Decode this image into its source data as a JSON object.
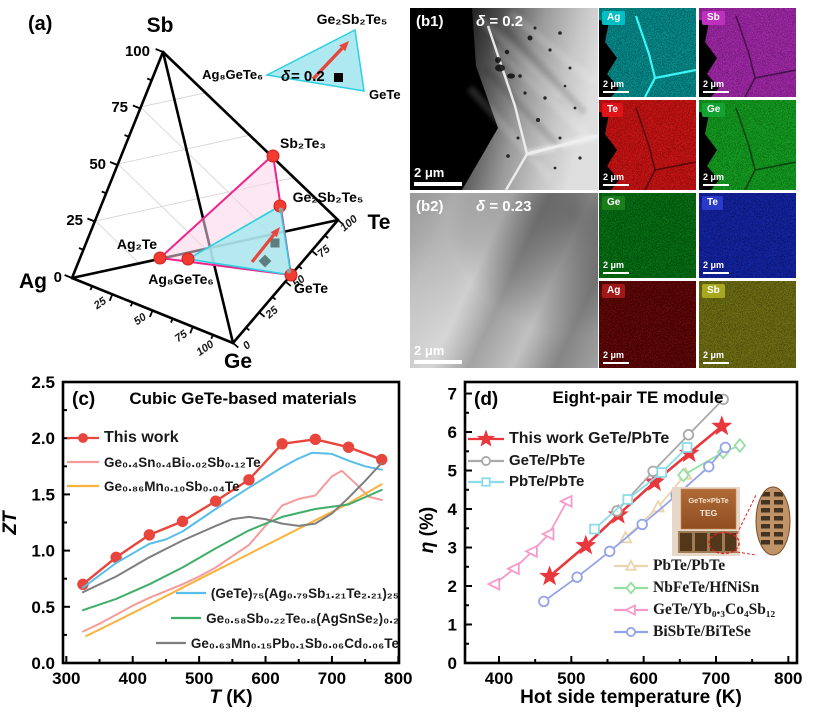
{
  "panel_a": {
    "label": "(a)",
    "vertices": [
      "Sb",
      "Ag",
      "Te",
      "Ge"
    ],
    "sb_ticks": [
      "100",
      "75",
      "50",
      "25",
      "0"
    ],
    "ag_ge_ticks": [
      "25",
      "50",
      "75",
      "100"
    ],
    "ge_te_ticks": [
      "0",
      "25",
      "50",
      "75",
      "100"
    ],
    "points": {
      "sb2te3": "Sb₂Te₃",
      "ge2sb2te5": "Ge₂Sb₂Te₅",
      "ag2te": "Ag₂Te",
      "ag8gete6": "Ag₈GeTe₆",
      "gete": "GeTe"
    },
    "inset": {
      "top": "Ge₂Sb₂Te₅",
      "left": "Ag₈GeTe₆",
      "right": "GeTe",
      "delta_symbol": "δ",
      "delta_eq": "= 0.2"
    },
    "colors": {
      "dot": "#f23b30",
      "magenta_triangle": "#f0248c",
      "cyan_triangle": "#2bd0e0",
      "arrow": "#e8463c"
    }
  },
  "panel_b1": {
    "label": "(b1)",
    "delta_symbol": "δ",
    "delta_value": "= 0.2",
    "scale_bar": "2 μm",
    "maps": [
      {
        "el": "Ag",
        "box": "#00bec6",
        "map": "#0e8b8b"
      },
      {
        "el": "Sb",
        "box": "#bf30bf",
        "map": "#a12ca8"
      },
      {
        "el": "Te",
        "box": "#e01418",
        "map": "#c81414"
      },
      {
        "el": "Ge",
        "box": "#12a332",
        "map": "#129c22"
      }
    ]
  },
  "panel_b2": {
    "label": "(b2)",
    "delta_symbol": "δ",
    "delta_value": "= 0.23",
    "scale_bar": "2 μm",
    "maps": [
      {
        "el": "Ge",
        "box": "#1b7e1b",
        "map": "#0e6e14"
      },
      {
        "el": "Te",
        "box": "#2a3bc8",
        "map": "#1428a0"
      },
      {
        "el": "Ag",
        "box": "#a01818",
        "map": "#5e0d0d"
      },
      {
        "el": "Sb",
        "box": "#a8a81e",
        "map": "#6e6e14"
      }
    ]
  },
  "panel_d_inset": {
    "module_line1": "GeTe×PbTe",
    "module_line2": "TEG"
  },
  "chart_data": [
    {
      "type": "line",
      "panel_label": "(c)",
      "title": "Cubic GeTe-based materials",
      "xlabel_italic": "T",
      "xlabel_rest": " (K)",
      "ylabel_italic": "ZT",
      "ylabel_rest": "",
      "xlim": [
        295,
        801
      ],
      "ylim": [
        0,
        2.5
      ],
      "xticks": [
        300,
        400,
        500,
        600,
        700,
        800
      ],
      "yticks": [
        "0.0",
        "0.5",
        "1.0",
        "1.5",
        "2.0",
        "2.5"
      ],
      "legend_position": "top-left and bottom-right",
      "grid": false,
      "series": [
        {
          "name": "This work",
          "color": "#e8463c",
          "marker": "circle-filled",
          "line_width": 2.4,
          "legend": "top",
          "x": [
            325,
            375,
            425,
            475,
            525,
            575,
            625,
            675,
            725,
            775
          ],
          "y": [
            0.7,
            0.94,
            1.14,
            1.26,
            1.44,
            1.63,
            1.95,
            1.99,
            1.92,
            1.81
          ]
        },
        {
          "name": "Ge₀.₄Sn₀.₄Bi₀.₀₂Sb₀.₁₂Te",
          "color": "#f49b9b",
          "marker": "none",
          "line_width": 2,
          "legend": "top",
          "x": [
            325,
            350,
            375,
            400,
            425,
            450,
            475,
            500,
            525,
            550,
            575,
            600,
            625,
            650,
            675,
            700,
            715,
            735,
            755,
            775
          ],
          "y": [
            0.28,
            0.35,
            0.43,
            0.51,
            0.58,
            0.64,
            0.7,
            0.77,
            0.85,
            0.95,
            1.05,
            1.22,
            1.4,
            1.46,
            1.49,
            1.66,
            1.71,
            1.6,
            1.48,
            1.45
          ]
        },
        {
          "name": "Ge₀.₈₆Mn₀.₁₀Sb₀.₀₄Te",
          "color": "#fbb13c",
          "marker": "none",
          "line_width": 2,
          "legend": "top",
          "x": [
            330,
            375,
            425,
            475,
            525,
            575,
            625,
            675,
            725,
            775
          ],
          "y": [
            0.24,
            0.37,
            0.52,
            0.67,
            0.82,
            0.97,
            1.12,
            1.27,
            1.42,
            1.59
          ]
        },
        {
          "name": "(GeTe)₇₅(Ag₀.₇₉Sb₁.₂₁Te₂.₂₁)₂₅",
          "color": "#58bee8",
          "marker": "none",
          "line_width": 2,
          "legend": "bottom",
          "x": [
            325,
            375,
            425,
            450,
            475,
            525,
            575,
            625,
            650,
            670,
            700,
            725,
            750,
            775
          ],
          "y": [
            0.67,
            0.89,
            1.06,
            1.1,
            1.17,
            1.37,
            1.56,
            1.74,
            1.82,
            1.87,
            1.86,
            1.8,
            1.75,
            1.72
          ]
        },
        {
          "name": "Ge₀.₅₈Sb₀.₂₂Te₀.₈(AgSnSe₂)₀.₂",
          "color": "#3fae68",
          "marker": "none",
          "line_width": 2,
          "legend": "bottom",
          "x": [
            325,
            375,
            425,
            475,
            525,
            575,
            625,
            675,
            725,
            775
          ],
          "y": [
            0.47,
            0.57,
            0.7,
            0.85,
            1.02,
            1.18,
            1.3,
            1.37,
            1.41,
            1.54
          ]
        },
        {
          "name": "Ge₀.₆₃Mn₀.₁₅Pb₀.₁Sb₀.₀₆Cd₀.₀₆Te",
          "color": "#7f7f7f",
          "marker": "none",
          "line_width": 2,
          "legend": "bottom",
          "x": [
            325,
            375,
            425,
            475,
            525,
            550,
            575,
            600,
            625,
            650,
            675,
            700,
            725,
            750,
            775
          ],
          "y": [
            0.63,
            0.77,
            0.94,
            1.09,
            1.22,
            1.28,
            1.3,
            1.28,
            1.24,
            1.22,
            1.24,
            1.33,
            1.47,
            1.62,
            1.78
          ]
        }
      ]
    },
    {
      "type": "line",
      "panel_label": "(d)",
      "title": "Eight-pair TE module",
      "xlabel": "Hot side temperature (K)",
      "ylabel_italic": "η",
      "ylabel_rest": " (%)",
      "xlim": [
        353,
        812
      ],
      "ylim": [
        0,
        7.3
      ],
      "xticks": [
        400,
        500,
        600,
        700,
        800
      ],
      "yticks": [
        "0",
        "1",
        "2",
        "3",
        "4",
        "5",
        "6",
        "7"
      ],
      "legend_position": "top-left and bottom-right",
      "grid": false,
      "series": [
        {
          "name": "This work GeTe/PbTe",
          "color": "#e8383d",
          "marker": "star",
          "line_width": 2.6,
          "legend": "top",
          "x": [
            470,
            520,
            565,
            615,
            663,
            708
          ],
          "y": [
            2.25,
            3.05,
            3.85,
            4.7,
            5.45,
            6.15
          ]
        },
        {
          "name": "GeTe/PbTe",
          "color": "#a9a9a9",
          "marker": "circle-open",
          "line_width": 1.8,
          "legend": "top",
          "x": [
            563,
            613,
            662,
            710
          ],
          "y": [
            3.95,
            4.98,
            5.93,
            6.85
          ]
        },
        {
          "name": "PbTe/PbTe",
          "color": "#8adce8",
          "marker": "square-open",
          "line_width": 1.8,
          "legend": "top",
          "x": [
            532,
            578,
            625,
            660
          ],
          "y": [
            3.48,
            4.25,
            4.95,
            5.6
          ]
        },
        {
          "name": "PbTe/PbTe",
          "color": "#ebd3ae",
          "marker": "triangle-up-open",
          "line_width": 1.8,
          "legend": "bottom",
          "x": [
            575,
            620,
            658
          ],
          "y": [
            3.25,
            4.05,
            4.9
          ]
        },
        {
          "name": "NbFeTe/HfNiSn",
          "color": "#95e0a0",
          "marker": "diamond-open",
          "line_width": 1.8,
          "legend": "bottom",
          "x": [
            655,
            710,
            733
          ],
          "y": [
            4.88,
            5.48,
            5.65
          ]
        },
        {
          "name": "GeTe/Yb₀.₃Co₄Sb₁₂",
          "color": "#f79ac9",
          "marker": "triangle-left-open",
          "line_width": 1.8,
          "legend": "bottom",
          "x": [
            394,
            421,
            446,
            469,
            494
          ],
          "y": [
            2.05,
            2.45,
            2.9,
            3.35,
            4.2
          ]
        },
        {
          "name": "BiSbTe/BiTeSe",
          "color": "#94a4e8",
          "marker": "circle-open",
          "line_width": 1.8,
          "legend": "bottom",
          "x": [
            462,
            508,
            553,
            598,
            645,
            690,
            713
          ],
          "y": [
            1.6,
            2.23,
            2.9,
            3.6,
            4.35,
            5.1,
            5.6
          ]
        }
      ]
    }
  ]
}
